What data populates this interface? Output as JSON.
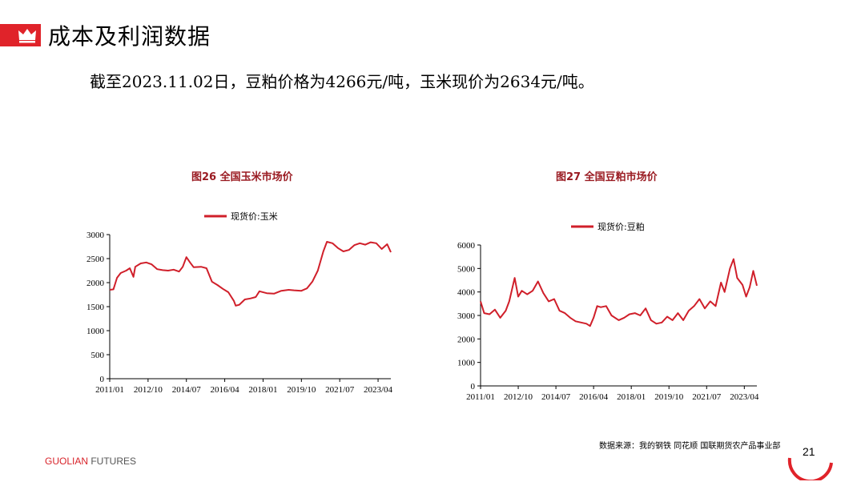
{
  "header": {
    "title": "成本及利润数据",
    "subtitle": "截至2023.11.02日，豆粕价格为4266元/吨，玉米现价为2634元/吨。",
    "accent_color": "#e0232a",
    "icon": "crown-icon"
  },
  "footer": {
    "source": "数据来源：我的钢铁  同花顺  国联期货农产品事业部",
    "brand_part1": "GUOLIAN",
    "brand_part2": " FUTURES",
    "page_number": "21"
  },
  "chart_data": [
    {
      "type": "line",
      "title": "图26  全国玉米市场价",
      "legend_position": "top",
      "series": [
        {
          "name": "现货价:玉米",
          "color": "#d01f2a",
          "points": [
            [
              "2011-01",
              1850
            ],
            [
              "2011-03",
              1860
            ],
            [
              "2011-05",
              2100
            ],
            [
              "2011-07",
              2200
            ],
            [
              "2011-10",
              2250
            ],
            [
              "2011-12",
              2300
            ],
            [
              "2012-02",
              2120
            ],
            [
              "2012-03",
              2330
            ],
            [
              "2012-06",
              2400
            ],
            [
              "2012-09",
              2420
            ],
            [
              "2012-12",
              2380
            ],
            [
              "2013-03",
              2280
            ],
            [
              "2013-06",
              2260
            ],
            [
              "2013-09",
              2250
            ],
            [
              "2013-12",
              2270
            ],
            [
              "2014-03",
              2230
            ],
            [
              "2014-05",
              2330
            ],
            [
              "2014-07",
              2530
            ],
            [
              "2014-09",
              2420
            ],
            [
              "2014-11",
              2320
            ],
            [
              "2015-03",
              2330
            ],
            [
              "2015-06",
              2300
            ],
            [
              "2015-09",
              2020
            ],
            [
              "2015-12",
              1950
            ],
            [
              "2016-03",
              1870
            ],
            [
              "2016-06",
              1800
            ],
            [
              "2016-09",
              1620
            ],
            [
              "2016-10",
              1520
            ],
            [
              "2016-12",
              1540
            ],
            [
              "2017-03",
              1650
            ],
            [
              "2017-06",
              1670
            ],
            [
              "2017-09",
              1700
            ],
            [
              "2017-11",
              1820
            ],
            [
              "2018-03",
              1780
            ],
            [
              "2018-07",
              1770
            ],
            [
              "2018-11",
              1830
            ],
            [
              "2019-03",
              1850
            ],
            [
              "2019-06",
              1840
            ],
            [
              "2019-10",
              1830
            ],
            [
              "2020-01",
              1880
            ],
            [
              "2020-04",
              2020
            ],
            [
              "2020-07",
              2250
            ],
            [
              "2020-10",
              2650
            ],
            [
              "2020-12",
              2850
            ],
            [
              "2021-03",
              2820
            ],
            [
              "2021-06",
              2720
            ],
            [
              "2021-09",
              2650
            ],
            [
              "2021-12",
              2680
            ],
            [
              "2022-03",
              2780
            ],
            [
              "2022-06",
              2820
            ],
            [
              "2022-09",
              2790
            ],
            [
              "2022-12",
              2840
            ],
            [
              "2023-03",
              2820
            ],
            [
              "2023-06",
              2700
            ],
            [
              "2023-09",
              2800
            ],
            [
              "2023-11",
              2634
            ]
          ]
        }
      ],
      "x_ticks": [
        "2011/01",
        "2012/10",
        "2014/07",
        "2016/04",
        "2018/01",
        "2019/10",
        "2021/07",
        "2023/04"
      ],
      "ylim": [
        0,
        3000
      ],
      "y_ticks": [
        0,
        500,
        1000,
        1500,
        2000,
        2500,
        3000
      ],
      "grid": false
    },
    {
      "type": "line",
      "title": "图27  全国豆粕市场价",
      "legend_position": "top",
      "series": [
        {
          "name": "现货价:豆粕",
          "color": "#d01f2a",
          "points": [
            [
              "2011-01",
              3600
            ],
            [
              "2011-03",
              3100
            ],
            [
              "2011-06",
              3050
            ],
            [
              "2011-09",
              3250
            ],
            [
              "2011-12",
              2900
            ],
            [
              "2012-03",
              3200
            ],
            [
              "2012-05",
              3600
            ],
            [
              "2012-08",
              4600
            ],
            [
              "2012-10",
              3800
            ],
            [
              "2012-12",
              4050
            ],
            [
              "2013-03",
              3900
            ],
            [
              "2013-06",
              4050
            ],
            [
              "2013-09",
              4450
            ],
            [
              "2013-12",
              3950
            ],
            [
              "2014-03",
              3600
            ],
            [
              "2014-06",
              3700
            ],
            [
              "2014-09",
              3200
            ],
            [
              "2014-12",
              3100
            ],
            [
              "2015-03",
              2900
            ],
            [
              "2015-06",
              2750
            ],
            [
              "2015-09",
              2700
            ],
            [
              "2015-12",
              2650
            ],
            [
              "2016-02",
              2550
            ],
            [
              "2016-04",
              2900
            ],
            [
              "2016-06",
              3400
            ],
            [
              "2016-08",
              3350
            ],
            [
              "2016-11",
              3400
            ],
            [
              "2017-02",
              3000
            ],
            [
              "2017-06",
              2800
            ],
            [
              "2017-09",
              2900
            ],
            [
              "2017-12",
              3050
            ],
            [
              "2018-03",
              3100
            ],
            [
              "2018-06",
              3000
            ],
            [
              "2018-09",
              3300
            ],
            [
              "2018-12",
              2800
            ],
            [
              "2019-03",
              2650
            ],
            [
              "2019-06",
              2700
            ],
            [
              "2019-09",
              2950
            ],
            [
              "2019-12",
              2800
            ],
            [
              "2020-03",
              3100
            ],
            [
              "2020-06",
              2800
            ],
            [
              "2020-09",
              3200
            ],
            [
              "2020-12",
              3400
            ],
            [
              "2021-03",
              3700
            ],
            [
              "2021-06",
              3300
            ],
            [
              "2021-09",
              3600
            ],
            [
              "2021-12",
              3400
            ],
            [
              "2022-03",
              4400
            ],
            [
              "2022-05",
              4000
            ],
            [
              "2022-08",
              5000
            ],
            [
              "2022-10",
              5400
            ],
            [
              "2022-12",
              4600
            ],
            [
              "2023-03",
              4300
            ],
            [
              "2023-05",
              3800
            ],
            [
              "2023-07",
              4200
            ],
            [
              "2023-09",
              4900
            ],
            [
              "2023-11",
              4266
            ]
          ]
        }
      ],
      "x_ticks": [
        "2011/01",
        "2012/10",
        "2014/07",
        "2016/04",
        "2018/01",
        "2019/10",
        "2021/07",
        "2023/04"
      ],
      "ylim": [
        0,
        6000
      ],
      "y_ticks": [
        0,
        1000,
        2000,
        3000,
        4000,
        5000,
        6000
      ],
      "grid": false
    }
  ]
}
